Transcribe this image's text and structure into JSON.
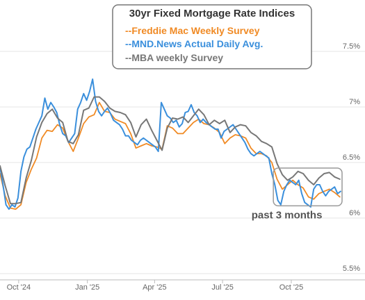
{
  "chart_data": {
    "type": "line",
    "title": "30yr Fixed Mortgage Rate Indices",
    "xlabel": "",
    "ylabel": "",
    "x_range": [
      "2024-09-06",
      "2025-12-08"
    ],
    "ylim": [
      5.5,
      7.6
    ],
    "y_ticks": [
      5.5,
      6.0,
      6.5,
      7.0,
      7.5
    ],
    "y_tick_labels": [
      "5.5%",
      "6%",
      "6.5%",
      "7%",
      "7.5%"
    ],
    "x_ticks": [
      "2024-10-01",
      "2025-01-01",
      "2025-04-01",
      "2025-07-01",
      "2025-10-01"
    ],
    "x_tick_labels": [
      "Oct '24",
      "Jan '25",
      "Apr '25",
      "Jul '25",
      "Oct '25"
    ],
    "grid": "horizontal",
    "legend_position": "top-center",
    "series": [
      {
        "name": "--Freddie Mac Weekly Survey",
        "color": "#f08a24",
        "x": [
          "2024-09-06",
          "2024-09-13",
          "2024-09-20",
          "2024-09-27",
          "2024-10-04",
          "2024-10-11",
          "2024-10-18",
          "2024-10-25",
          "2024-11-01",
          "2024-11-08",
          "2024-11-15",
          "2024-11-22",
          "2024-11-29",
          "2024-12-06",
          "2024-12-13",
          "2024-12-20",
          "2024-12-27",
          "2025-01-03",
          "2025-01-10",
          "2025-01-17",
          "2025-01-24",
          "2025-01-31",
          "2025-02-07",
          "2025-02-14",
          "2025-02-21",
          "2025-02-28",
          "2025-03-07",
          "2025-03-14",
          "2025-03-21",
          "2025-03-28",
          "2025-04-04",
          "2025-04-11",
          "2025-04-18",
          "2025-04-25",
          "2025-05-02",
          "2025-05-09",
          "2025-05-16",
          "2025-05-23",
          "2025-05-30",
          "2025-06-06",
          "2025-06-13",
          "2025-06-20",
          "2025-06-27",
          "2025-07-04",
          "2025-07-11",
          "2025-07-18",
          "2025-07-25",
          "2025-08-01",
          "2025-08-08",
          "2025-08-15",
          "2025-08-22",
          "2025-08-29",
          "2025-09-05",
          "2025-09-12",
          "2025-09-19",
          "2025-09-26",
          "2025-10-03",
          "2025-10-10",
          "2025-10-17",
          "2025-10-24",
          "2025-10-31",
          "2025-11-07",
          "2025-11-14",
          "2025-11-21",
          "2025-11-28",
          "2025-12-05"
        ],
        "y": [
          6.4,
          6.2,
          6.09,
          6.08,
          6.12,
          6.32,
          6.44,
          6.54,
          6.72,
          6.79,
          6.78,
          6.84,
          6.81,
          6.69,
          6.6,
          6.72,
          6.85,
          6.91,
          6.93,
          7.04,
          6.96,
          6.95,
          6.89,
          6.87,
          6.85,
          6.76,
          6.63,
          6.65,
          6.67,
          6.65,
          6.64,
          6.62,
          6.83,
          6.81,
          6.76,
          6.76,
          6.81,
          6.86,
          6.89,
          6.85,
          6.84,
          6.81,
          6.77,
          6.67,
          6.72,
          6.75,
          6.74,
          6.72,
          6.63,
          6.58,
          6.58,
          6.56,
          6.5,
          6.35,
          6.26,
          6.3,
          6.34,
          6.3,
          6.27,
          6.19,
          6.17,
          6.22,
          6.24,
          6.26,
          6.23,
          6.19
        ]
      },
      {
        "name": "--MND.News Actual Daily Avg.",
        "color": "#3a8fdc",
        "x": [
          "2024-09-06",
          "2024-09-10",
          "2024-09-14",
          "2024-09-18",
          "2024-09-22",
          "2024-09-26",
          "2024-09-30",
          "2024-10-04",
          "2024-10-08",
          "2024-10-12",
          "2024-10-16",
          "2024-10-20",
          "2024-10-24",
          "2024-10-28",
          "2024-11-01",
          "2024-11-05",
          "2024-11-09",
          "2024-11-13",
          "2024-11-17",
          "2024-11-21",
          "2024-11-25",
          "2024-11-29",
          "2024-12-03",
          "2024-12-07",
          "2024-12-11",
          "2024-12-15",
          "2024-12-19",
          "2024-12-23",
          "2024-12-27",
          "2024-12-31",
          "2025-01-04",
          "2025-01-08",
          "2025-01-12",
          "2025-01-16",
          "2025-01-20",
          "2025-01-24",
          "2025-01-28",
          "2025-02-01",
          "2025-02-05",
          "2025-02-09",
          "2025-02-13",
          "2025-02-17",
          "2025-02-21",
          "2025-02-25",
          "2025-03-01",
          "2025-03-05",
          "2025-03-09",
          "2025-03-13",
          "2025-03-17",
          "2025-03-21",
          "2025-03-25",
          "2025-03-29",
          "2025-04-02",
          "2025-04-06",
          "2025-04-10",
          "2025-04-14",
          "2025-04-18",
          "2025-04-22",
          "2025-04-26",
          "2025-04-30",
          "2025-05-04",
          "2025-05-08",
          "2025-05-12",
          "2025-05-16",
          "2025-05-20",
          "2025-05-24",
          "2025-05-28",
          "2025-06-01",
          "2025-06-05",
          "2025-06-09",
          "2025-06-13",
          "2025-06-17",
          "2025-06-21",
          "2025-06-25",
          "2025-06-29",
          "2025-07-03",
          "2025-07-07",
          "2025-07-11",
          "2025-07-15",
          "2025-07-19",
          "2025-07-23",
          "2025-07-27",
          "2025-07-31",
          "2025-08-04",
          "2025-08-08",
          "2025-08-12",
          "2025-08-16",
          "2025-08-20",
          "2025-08-24",
          "2025-08-28",
          "2025-09-01",
          "2025-09-05",
          "2025-09-09",
          "2025-09-13",
          "2025-09-17",
          "2025-09-21",
          "2025-09-25",
          "2025-09-29",
          "2025-10-03",
          "2025-10-07",
          "2025-10-11",
          "2025-10-15",
          "2025-10-19",
          "2025-10-23",
          "2025-10-27",
          "2025-10-31",
          "2025-11-04",
          "2025-11-08",
          "2025-11-12",
          "2025-11-16",
          "2025-11-20",
          "2025-11-24",
          "2025-11-28",
          "2025-12-02",
          "2025-12-06"
        ],
        "y": [
          6.46,
          6.3,
          6.12,
          6.08,
          6.12,
          6.1,
          6.18,
          6.42,
          6.55,
          6.62,
          6.64,
          6.72,
          6.8,
          6.86,
          6.92,
          7.08,
          6.98,
          7.04,
          7.0,
          6.95,
          6.84,
          6.76,
          6.74,
          6.68,
          6.72,
          6.76,
          6.98,
          7.04,
          7.12,
          7.06,
          7.14,
          7.25,
          7.05,
          6.96,
          6.92,
          6.96,
          6.99,
          6.94,
          6.88,
          6.86,
          6.84,
          6.8,
          6.74,
          6.74,
          6.7,
          6.68,
          6.66,
          6.7,
          6.72,
          6.7,
          6.68,
          6.66,
          6.64,
          6.6,
          7.04,
          6.98,
          6.92,
          6.9,
          6.86,
          6.88,
          6.82,
          6.85,
          6.95,
          6.96,
          7.02,
          6.95,
          6.92,
          6.86,
          6.89,
          6.86,
          6.84,
          6.82,
          6.8,
          6.8,
          6.72,
          6.78,
          6.8,
          6.82,
          6.84,
          6.8,
          6.76,
          6.72,
          6.68,
          6.62,
          6.58,
          6.56,
          6.58,
          6.6,
          6.58,
          6.56,
          6.54,
          6.4,
          6.3,
          6.16,
          6.12,
          6.24,
          6.3,
          6.34,
          6.32,
          6.3,
          6.34,
          6.22,
          6.14,
          6.12,
          6.1,
          6.26,
          6.3,
          6.3,
          6.24,
          6.2,
          6.24,
          6.26,
          6.28,
          6.22,
          6.24
        ]
      },
      {
        "name": "--MBA weekly Survey",
        "color": "#777777",
        "x": [
          "2024-09-06",
          "2024-09-13",
          "2024-09-20",
          "2024-09-27",
          "2024-10-04",
          "2024-10-11",
          "2024-10-18",
          "2024-10-25",
          "2024-11-01",
          "2024-11-08",
          "2024-11-15",
          "2024-11-22",
          "2024-11-29",
          "2024-12-06",
          "2024-12-13",
          "2024-12-20",
          "2024-12-27",
          "2025-01-03",
          "2025-01-10",
          "2025-01-17",
          "2025-01-24",
          "2025-01-31",
          "2025-02-07",
          "2025-02-14",
          "2025-02-21",
          "2025-02-28",
          "2025-03-07",
          "2025-03-14",
          "2025-03-21",
          "2025-03-28",
          "2025-04-04",
          "2025-04-11",
          "2025-04-18",
          "2025-04-25",
          "2025-05-02",
          "2025-05-09",
          "2025-05-16",
          "2025-05-23",
          "2025-05-30",
          "2025-06-06",
          "2025-06-13",
          "2025-06-20",
          "2025-06-27",
          "2025-07-04",
          "2025-07-11",
          "2025-07-18",
          "2025-07-25",
          "2025-08-01",
          "2025-08-08",
          "2025-08-15",
          "2025-08-22",
          "2025-08-29",
          "2025-09-05",
          "2025-09-12",
          "2025-09-19",
          "2025-09-26",
          "2025-10-03",
          "2025-10-10",
          "2025-10-17",
          "2025-10-24",
          "2025-10-31",
          "2025-11-07",
          "2025-11-14",
          "2025-11-21",
          "2025-11-28",
          "2025-12-05"
        ],
        "y": [
          6.47,
          6.29,
          6.13,
          6.13,
          6.14,
          6.36,
          6.52,
          6.73,
          6.86,
          6.94,
          6.98,
          6.9,
          6.86,
          6.69,
          6.67,
          6.75,
          6.97,
          6.99,
          7.09,
          7.09,
          7.05,
          6.99,
          6.96,
          6.95,
          6.93,
          6.86,
          6.73,
          6.84,
          6.89,
          6.79,
          6.7,
          6.61,
          6.81,
          6.9,
          6.89,
          6.91,
          6.86,
          6.92,
          6.98,
          6.93,
          6.84,
          6.88,
          6.85,
          6.88,
          6.77,
          6.82,
          6.84,
          6.83,
          6.77,
          6.74,
          6.69,
          6.67,
          6.64,
          6.49,
          6.39,
          6.34,
          6.37,
          6.42,
          6.4,
          6.34,
          6.3,
          6.36,
          6.4,
          6.41,
          6.37,
          6.35
        ]
      }
    ],
    "annotation": {
      "text": "past 3 months",
      "x_range": [
        "2025-09-07",
        "2025-12-08"
      ],
      "y_range": [
        6.11,
        6.45
      ]
    }
  }
}
